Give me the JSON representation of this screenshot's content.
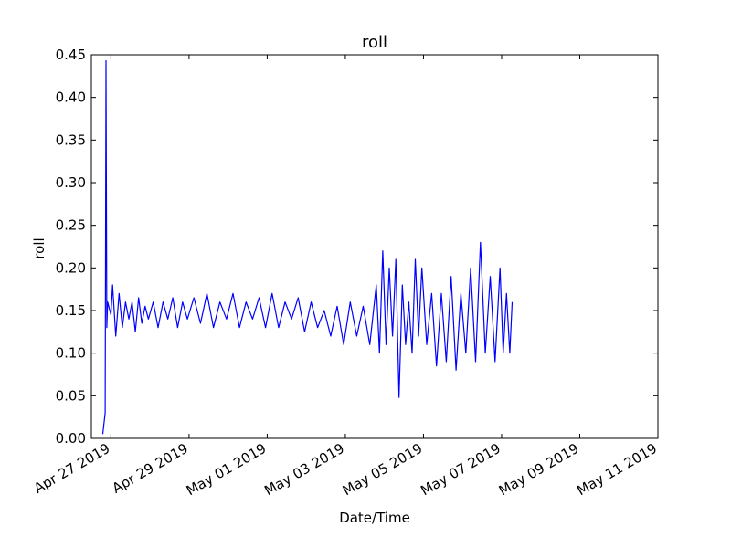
{
  "chart_data": {
    "type": "line",
    "title": "roll",
    "xlabel": "Date/Time",
    "ylabel": "roll",
    "x_type": "date",
    "xlim": [
      "2019-04-26T12:00",
      "2019-05-11T00:00"
    ],
    "ylim": [
      0,
      0.45
    ],
    "yticks": [
      0.0,
      0.05,
      0.1,
      0.15,
      0.2,
      0.25,
      0.3,
      0.35,
      0.4,
      0.45
    ],
    "ytick_labels": [
      "0.00",
      "0.05",
      "0.10",
      "0.15",
      "0.20",
      "0.25",
      "0.30",
      "0.35",
      "0.40",
      "0.45"
    ],
    "xticks": [
      "2019-04-27",
      "2019-04-29",
      "2019-05-01",
      "2019-05-03",
      "2019-05-05",
      "2019-05-07",
      "2019-05-09",
      "2019-05-11"
    ],
    "xtick_labels": [
      "Apr 27 2019",
      "Apr 29 2019",
      "May 01 2019",
      "May 03 2019",
      "May 05 2019",
      "May 07 2019",
      "May 09 2019",
      "May 11 2019"
    ],
    "grid": false,
    "series": [
      {
        "color": "#0000ff",
        "x": [
          "2019-04-26T19:00",
          "2019-04-26T20:30",
          "2019-04-26T21:00",
          "2019-04-26T21:30",
          "2019-04-26T22:00",
          "2019-04-27T00:00",
          "2019-04-27T01:00",
          "2019-04-27T03:00",
          "2019-04-27T05:00",
          "2019-04-27T07:00",
          "2019-04-27T09:00",
          "2019-04-27T11:00",
          "2019-04-27T13:00",
          "2019-04-27T15:00",
          "2019-04-27T17:00",
          "2019-04-27T19:00",
          "2019-04-27T21:00",
          "2019-04-27T23:00",
          "2019-04-28T02:00",
          "2019-04-28T05:00",
          "2019-04-28T08:00",
          "2019-04-28T11:00",
          "2019-04-28T14:00",
          "2019-04-28T17:00",
          "2019-04-28T20:00",
          "2019-04-28T23:00",
          "2019-04-29T03:00",
          "2019-04-29T07:00",
          "2019-04-29T11:00",
          "2019-04-29T15:00",
          "2019-04-29T19:00",
          "2019-04-29T23:00",
          "2019-04-30T03:00",
          "2019-04-30T07:00",
          "2019-04-30T11:00",
          "2019-04-30T15:00",
          "2019-04-30T19:00",
          "2019-04-30T23:00",
          "2019-05-01T03:00",
          "2019-05-01T07:00",
          "2019-05-01T11:00",
          "2019-05-01T15:00",
          "2019-05-01T19:00",
          "2019-05-01T23:00",
          "2019-05-02T03:00",
          "2019-05-02T07:00",
          "2019-05-02T11:00",
          "2019-05-02T15:00",
          "2019-05-02T19:00",
          "2019-05-02T23:00",
          "2019-05-03T03:00",
          "2019-05-03T07:00",
          "2019-05-03T11:00",
          "2019-05-03T15:00",
          "2019-05-03T19:00",
          "2019-05-03T21:00",
          "2019-05-03T23:00",
          "2019-05-04T01:00",
          "2019-05-04T03:00",
          "2019-05-04T05:00",
          "2019-05-04T07:00",
          "2019-05-04T09:00",
          "2019-05-04T11:00",
          "2019-05-04T13:00",
          "2019-05-04T15:00",
          "2019-05-04T17:00",
          "2019-05-04T19:00",
          "2019-05-04T21:00",
          "2019-05-04T23:00",
          "2019-05-05T02:00",
          "2019-05-05T05:00",
          "2019-05-05T08:00",
          "2019-05-05T11:00",
          "2019-05-05T14:00",
          "2019-05-05T17:00",
          "2019-05-05T20:00",
          "2019-05-05T23:00",
          "2019-05-06T02:00",
          "2019-05-06T05:00",
          "2019-05-06T08:00",
          "2019-05-06T11:00",
          "2019-05-06T14:00",
          "2019-05-06T17:00",
          "2019-05-06T20:00",
          "2019-05-06T23:00",
          "2019-05-07T01:00",
          "2019-05-07T03:00",
          "2019-05-07T05:00",
          "2019-05-07T06:30"
        ],
        "y": [
          0.005,
          0.03,
          0.443,
          0.13,
          0.16,
          0.145,
          0.18,
          0.12,
          0.17,
          0.13,
          0.16,
          0.14,
          0.16,
          0.125,
          0.165,
          0.135,
          0.155,
          0.14,
          0.16,
          0.13,
          0.16,
          0.14,
          0.165,
          0.13,
          0.16,
          0.14,
          0.165,
          0.135,
          0.17,
          0.13,
          0.16,
          0.14,
          0.17,
          0.13,
          0.16,
          0.14,
          0.165,
          0.13,
          0.17,
          0.13,
          0.16,
          0.14,
          0.165,
          0.125,
          0.16,
          0.13,
          0.15,
          0.12,
          0.155,
          0.11,
          0.16,
          0.12,
          0.155,
          0.11,
          0.18,
          0.1,
          0.22,
          0.11,
          0.2,
          0.12,
          0.21,
          0.048,
          0.18,
          0.11,
          0.16,
          0.1,
          0.21,
          0.12,
          0.2,
          0.11,
          0.17,
          0.085,
          0.17,
          0.09,
          0.19,
          0.08,
          0.17,
          0.1,
          0.2,
          0.09,
          0.23,
          0.1,
          0.19,
          0.09,
          0.2,
          0.1,
          0.17,
          0.1,
          0.16
        ]
      }
    ]
  }
}
